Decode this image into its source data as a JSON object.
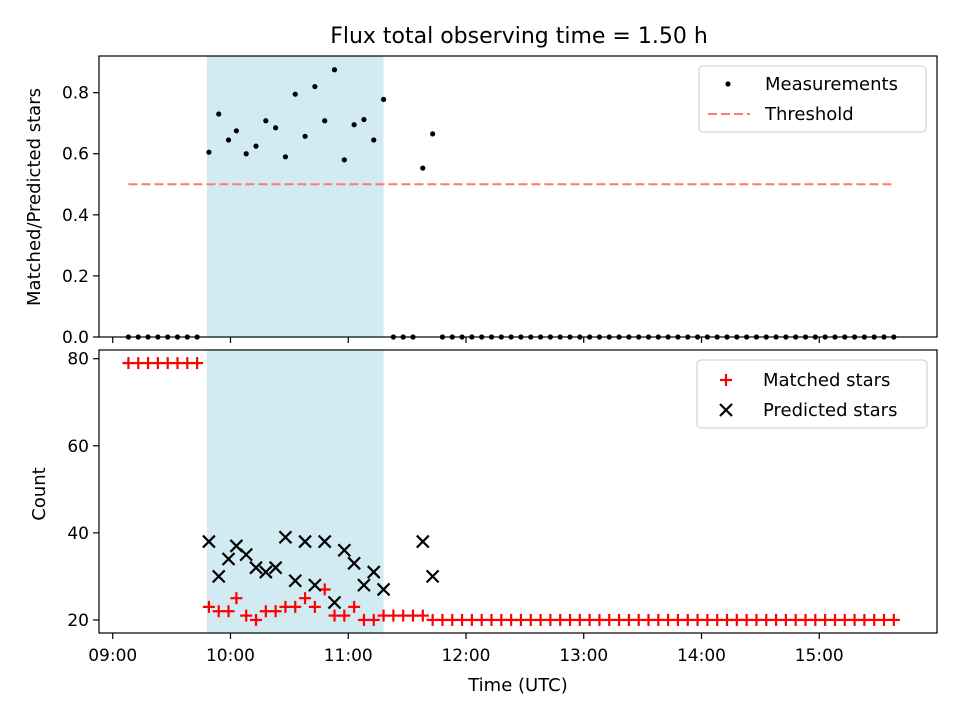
{
  "chart_data": [
    {
      "type": "scatter",
      "title": "Flux total observing time = 1.50 h",
      "xlabel": "",
      "ylabel": "Matched/Predicted stars",
      "ylim": [
        0,
        0.92
      ],
      "yticks": [
        0.0,
        0.2,
        0.4,
        0.6,
        0.8
      ],
      "ytick_labels": [
        "0.0",
        "0.2",
        "0.4",
        "0.6",
        "0.8"
      ],
      "xlim": [
        "08:53",
        "16:00"
      ],
      "xticks": [
        "09:00",
        "10:00",
        "11:00",
        "12:00",
        "13:00",
        "14:00",
        "15:00"
      ],
      "shaded_interval": {
        "start": "09:48",
        "end": "11:18",
        "color": "#add8e6"
      },
      "legend_position": "top-right",
      "series": [
        {
          "name": "Measurements",
          "kind": "points",
          "color": "#000000",
          "points": [
            [
              "09:08",
              0.0
            ],
            [
              "09:13",
              0.0
            ],
            [
              "09:18",
              0.0
            ],
            [
              "09:23",
              0.0
            ],
            [
              "09:28",
              0.0
            ],
            [
              "09:33",
              0.0
            ],
            [
              "09:38",
              0.0
            ],
            [
              "09:43",
              0.0
            ],
            [
              "09:49",
              0.605
            ],
            [
              "09:54",
              0.73
            ],
            [
              "09:59",
              0.645
            ],
            [
              "10:03",
              0.675
            ],
            [
              "10:08",
              0.6
            ],
            [
              "10:13",
              0.625
            ],
            [
              "10:18",
              0.708
            ],
            [
              "10:23",
              0.685
            ],
            [
              "10:28",
              0.59
            ],
            [
              "10:33",
              0.795
            ],
            [
              "10:38",
              0.657
            ],
            [
              "10:43",
              0.82
            ],
            [
              "10:48",
              0.708
            ],
            [
              "10:53",
              0.875
            ],
            [
              "10:58",
              0.58
            ],
            [
              "11:03",
              0.695
            ],
            [
              "11:08",
              0.712
            ],
            [
              "11:13",
              0.645
            ],
            [
              "11:18",
              0.778
            ],
            [
              "11:23",
              0.0
            ],
            [
              "11:28",
              0.0
            ],
            [
              "11:33",
              0.0
            ],
            [
              "11:38",
              0.553
            ],
            [
              "11:43",
              0.665
            ],
            [
              "11:48",
              0.0
            ],
            [
              "11:53",
              0.0
            ],
            [
              "11:58",
              0.0
            ],
            [
              "12:03",
              0.0
            ],
            [
              "12:08",
              0.0
            ],
            [
              "12:13",
              0.0
            ],
            [
              "12:18",
              0.0
            ],
            [
              "12:23",
              0.0
            ],
            [
              "12:28",
              0.0
            ],
            [
              "12:33",
              0.0
            ],
            [
              "12:38",
              0.0
            ],
            [
              "12:43",
              0.0
            ],
            [
              "12:48",
              0.0
            ],
            [
              "12:53",
              0.0
            ],
            [
              "12:58",
              0.0
            ],
            [
              "13:03",
              0.0
            ],
            [
              "13:08",
              0.0
            ],
            [
              "13:13",
              0.0
            ],
            [
              "13:18",
              0.0
            ],
            [
              "13:23",
              0.0
            ],
            [
              "13:28",
              0.0
            ],
            [
              "13:33",
              0.0
            ],
            [
              "13:38",
              0.0
            ],
            [
              "13:43",
              0.0
            ],
            [
              "13:48",
              0.0
            ],
            [
              "13:53",
              0.0
            ],
            [
              "13:58",
              0.0
            ],
            [
              "14:03",
              0.0
            ],
            [
              "14:08",
              0.0
            ],
            [
              "14:13",
              0.0
            ],
            [
              "14:18",
              0.0
            ],
            [
              "14:23",
              0.0
            ],
            [
              "14:28",
              0.0
            ],
            [
              "14:33",
              0.0
            ],
            [
              "14:38",
              0.0
            ],
            [
              "14:43",
              0.0
            ],
            [
              "14:48",
              0.0
            ],
            [
              "14:53",
              0.0
            ],
            [
              "14:58",
              0.0
            ],
            [
              "15:03",
              0.0
            ],
            [
              "15:08",
              0.0
            ],
            [
              "15:13",
              0.0
            ],
            [
              "15:18",
              0.0
            ],
            [
              "15:23",
              0.0
            ],
            [
              "15:28",
              0.0
            ],
            [
              "15:33",
              0.0
            ],
            [
              "15:38",
              0.0
            ]
          ]
        },
        {
          "name": "Threshold",
          "kind": "dashed-line",
          "color": "#ff7777",
          "points": [
            [
              "09:08",
              0.5
            ],
            [
              "15:38",
              0.5
            ]
          ]
        }
      ]
    },
    {
      "type": "scatter",
      "title": "",
      "xlabel": "Time (UTC)",
      "ylabel": "Count",
      "ylim": [
        17,
        82
      ],
      "yticks": [
        20,
        40,
        60,
        80
      ],
      "ytick_labels": [
        "20",
        "40",
        "60",
        "80"
      ],
      "xlim": [
        "08:53",
        "16:00"
      ],
      "xticks": [
        "09:00",
        "10:00",
        "11:00",
        "12:00",
        "13:00",
        "14:00",
        "15:00"
      ],
      "xtick_labels": [
        "09:00",
        "10:00",
        "11:00",
        "12:00",
        "13:00",
        "14:00",
        "15:00"
      ],
      "shaded_interval": {
        "start": "09:48",
        "end": "11:18",
        "color": "#add8e6"
      },
      "legend_position": "top-right",
      "series": [
        {
          "name": "Matched stars",
          "kind": "plus",
          "color": "#ff0000",
          "points": [
            [
              "09:08",
              79
            ],
            [
              "09:13",
              79
            ],
            [
              "09:18",
              79
            ],
            [
              "09:23",
              79
            ],
            [
              "09:28",
              79
            ],
            [
              "09:33",
              79
            ],
            [
              "09:38",
              79
            ],
            [
              "09:43",
              79
            ],
            [
              "09:49",
              23
            ],
            [
              "09:54",
              22
            ],
            [
              "09:59",
              22
            ],
            [
              "10:03",
              25
            ],
            [
              "10:08",
              21
            ],
            [
              "10:13",
              20
            ],
            [
              "10:18",
              22
            ],
            [
              "10:23",
              22
            ],
            [
              "10:28",
              23
            ],
            [
              "10:33",
              23
            ],
            [
              "10:38",
              25
            ],
            [
              "10:43",
              23
            ],
            [
              "10:48",
              27
            ],
            [
              "10:53",
              21
            ],
            [
              "10:58",
              21
            ],
            [
              "11:03",
              23
            ],
            [
              "11:08",
              20
            ],
            [
              "11:13",
              20
            ],
            [
              "11:18",
              21
            ],
            [
              "11:23",
              21
            ],
            [
              "11:28",
              21
            ],
            [
              "11:33",
              21
            ],
            [
              "11:38",
              21
            ],
            [
              "11:43",
              20
            ],
            [
              "11:48",
              20
            ],
            [
              "11:53",
              20
            ],
            [
              "11:58",
              20
            ],
            [
              "12:03",
              20
            ],
            [
              "12:08",
              20
            ],
            [
              "12:13",
              20
            ],
            [
              "12:18",
              20
            ],
            [
              "12:23",
              20
            ],
            [
              "12:28",
              20
            ],
            [
              "12:33",
              20
            ],
            [
              "12:38",
              20
            ],
            [
              "12:43",
              20
            ],
            [
              "12:48",
              20
            ],
            [
              "12:53",
              20
            ],
            [
              "12:58",
              20
            ],
            [
              "13:03",
              20
            ],
            [
              "13:08",
              20
            ],
            [
              "13:13",
              20
            ],
            [
              "13:18",
              20
            ],
            [
              "13:23",
              20
            ],
            [
              "13:28",
              20
            ],
            [
              "13:33",
              20
            ],
            [
              "13:38",
              20
            ],
            [
              "13:43",
              20
            ],
            [
              "13:48",
              20
            ],
            [
              "13:53",
              20
            ],
            [
              "13:58",
              20
            ],
            [
              "14:03",
              20
            ],
            [
              "14:08",
              20
            ],
            [
              "14:13",
              20
            ],
            [
              "14:18",
              20
            ],
            [
              "14:23",
              20
            ],
            [
              "14:28",
              20
            ],
            [
              "14:33",
              20
            ],
            [
              "14:38",
              20
            ],
            [
              "14:43",
              20
            ],
            [
              "14:48",
              20
            ],
            [
              "14:53",
              20
            ],
            [
              "14:58",
              20
            ],
            [
              "15:03",
              20
            ],
            [
              "15:08",
              20
            ],
            [
              "15:13",
              20
            ],
            [
              "15:18",
              20
            ],
            [
              "15:23",
              20
            ],
            [
              "15:28",
              20
            ],
            [
              "15:33",
              20
            ],
            [
              "15:38",
              20
            ]
          ]
        },
        {
          "name": "Predicted stars",
          "kind": "x",
          "color": "#000000",
          "points": [
            [
              "09:49",
              38
            ],
            [
              "09:54",
              30
            ],
            [
              "09:59",
              34
            ],
            [
              "10:03",
              37
            ],
            [
              "10:08",
              35
            ],
            [
              "10:13",
              32
            ],
            [
              "10:18",
              31
            ],
            [
              "10:23",
              32
            ],
            [
              "10:28",
              39
            ],
            [
              "10:33",
              29
            ],
            [
              "10:38",
              38
            ],
            [
              "10:43",
              28
            ],
            [
              "10:48",
              38
            ],
            [
              "10:53",
              24
            ],
            [
              "10:58",
              36
            ],
            [
              "11:03",
              33
            ],
            [
              "11:08",
              28
            ],
            [
              "11:13",
              31
            ],
            [
              "11:18",
              27
            ],
            [
              "11:38",
              38
            ],
            [
              "11:43",
              30
            ]
          ]
        }
      ]
    }
  ]
}
